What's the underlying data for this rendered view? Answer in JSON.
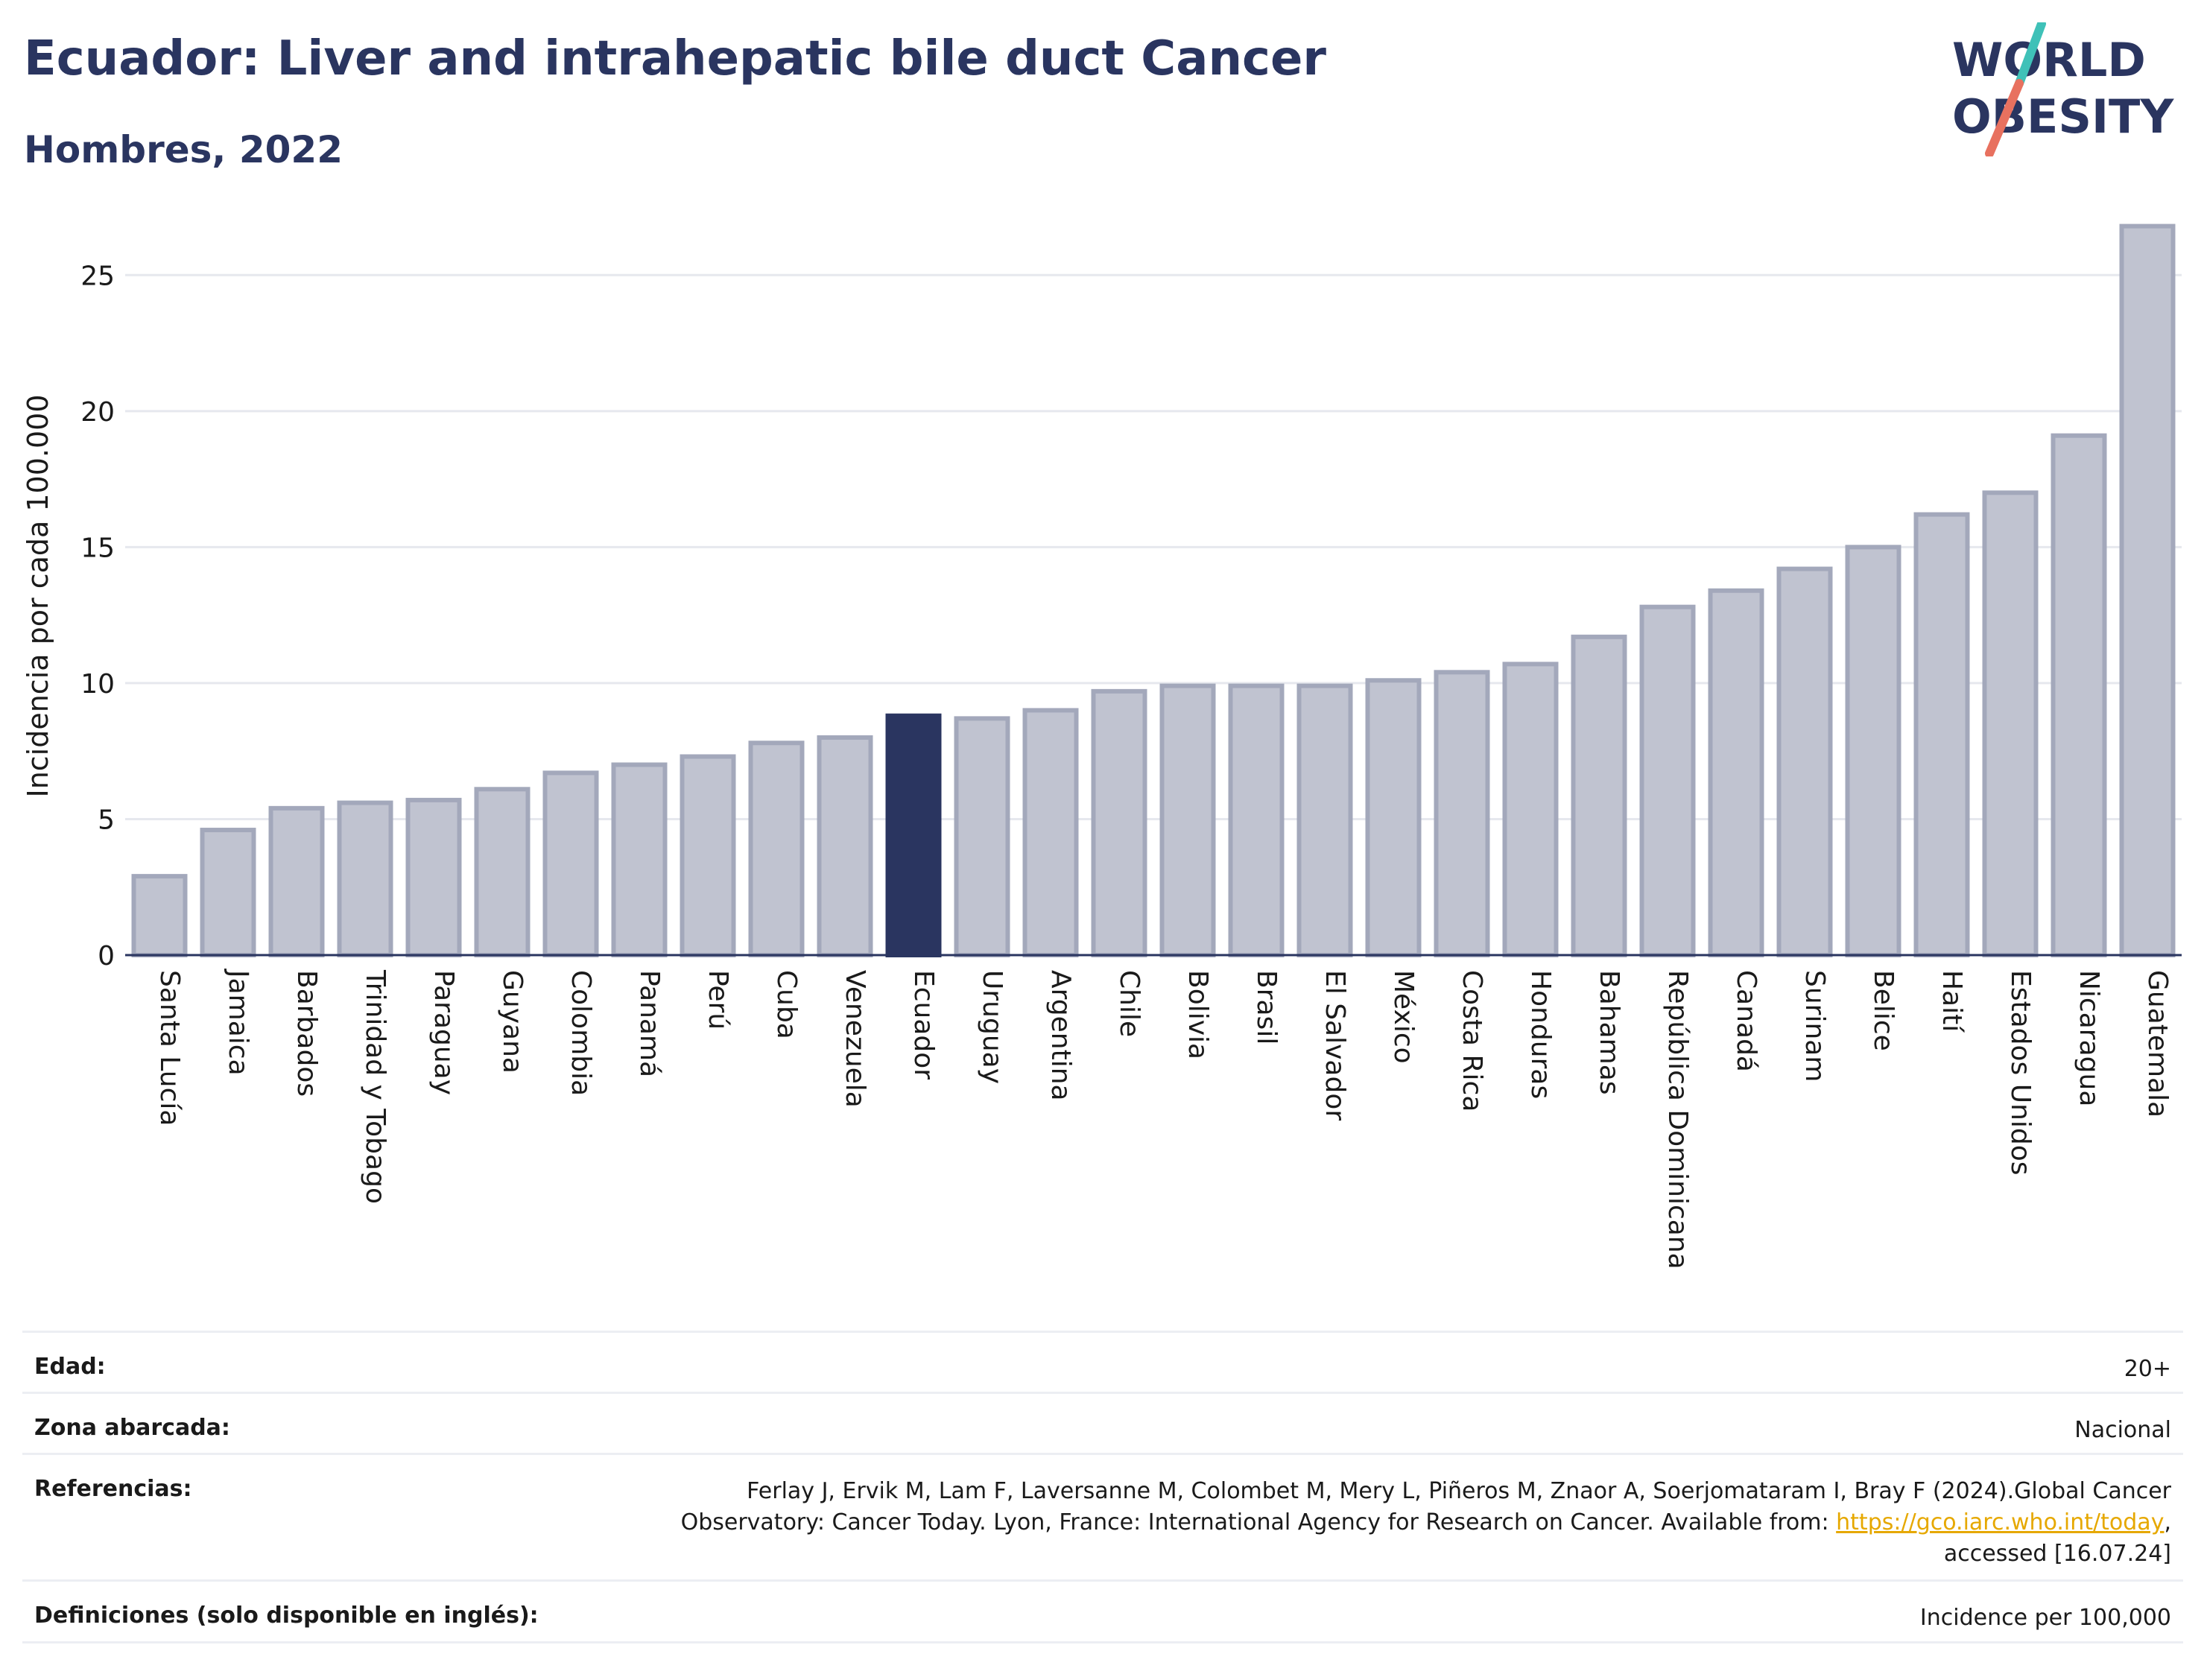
{
  "header": {
    "title": "Ecuador: Liver and intrahepatic bile duct Cancer",
    "subtitle": "Hombres, 2022"
  },
  "logo": {
    "line1": "WORLD",
    "line2": "OBESITY"
  },
  "colors": {
    "bar_fill": "#c0c3d0",
    "bar_stroke": "#a3a8bb",
    "highlight": "#2a3560",
    "grid": "#e6e8ee",
    "text": "#2a3560",
    "logo_teal": "#3fc1b8",
    "logo_coral": "#e8715f"
  },
  "chart_data": {
    "type": "bar",
    "ylabel": "Incidencia por cada 100.000",
    "ylim": [
      0,
      27.5
    ],
    "yticks": [
      0,
      5,
      10,
      15,
      20,
      25
    ],
    "grid": true,
    "highlight": "Ecuador",
    "categories": [
      "Santa Lucía",
      "Jamaica",
      "Barbados",
      "Trinidad y Tobago",
      "Paraguay",
      "Guyana",
      "Colombia",
      "Panamá",
      "Perú",
      "Cuba",
      "Venezuela",
      "Ecuador",
      "Uruguay",
      "Argentina",
      "Chile",
      "Bolivia",
      "Brasil",
      "El Salvador",
      "México",
      "Costa Rica",
      "Honduras",
      "Bahamas",
      "República Dominicana",
      "Canadá",
      "Surinam",
      "Belice",
      "Haití",
      "Estados Unidos",
      "Nicaragua",
      "Guatemala"
    ],
    "values": [
      2.9,
      4.6,
      5.4,
      5.6,
      5.7,
      6.1,
      6.7,
      7.0,
      7.3,
      7.8,
      8.0,
      8.8,
      8.7,
      9.0,
      9.7,
      9.9,
      9.9,
      9.9,
      10.1,
      10.4,
      10.7,
      11.7,
      12.8,
      13.4,
      14.2,
      15.0,
      16.2,
      17.0,
      19.1,
      26.8
    ]
  },
  "info": {
    "edad_label": "Edad:",
    "edad_value": "20+",
    "zona_label": "Zona abarcada:",
    "zona_value": "Nacional",
    "ref_label": "Referencias:",
    "ref_line1": "Ferlay J, Ervik M, Lam F, Laversanne M, Colombet M, Mery L, Piñeros M, Znaor A, Soerjomataram I, Bray F (2024).Global Cancer",
    "ref_line2_pre": "Observatory: Cancer Today. Lyon, France: International Agency for Research on Cancer. Available from: ",
    "ref_link": "https://gco.iarc.who.int/today",
    "ref_line2_post": ",",
    "ref_line3": "accessed [16.07.24]",
    "def_label": "Definiciones (solo disponible en inglés):",
    "def_value": "Incidence per 100,000"
  }
}
